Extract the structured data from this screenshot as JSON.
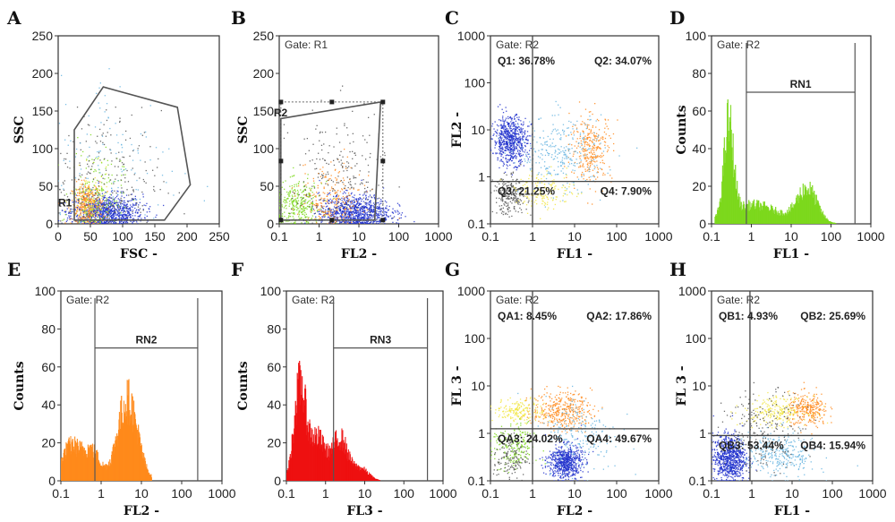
{
  "colors": {
    "blue": "#2233cc",
    "orange": "#ff8a1c",
    "green": "#7cd81c",
    "red": "#ee1111",
    "yellow": "#f2e642",
    "gray": "#555555",
    "cyan": "#66b4e0",
    "gate": "#555555"
  },
  "panels": [
    {
      "letter": "A",
      "type": "scatter",
      "gate": "",
      "xscale": "linear",
      "yscale": "linear",
      "xlim": [
        0,
        250
      ],
      "ylim": [
        0,
        250
      ],
      "xticks": [
        "0",
        "50",
        "100",
        "150",
        "200",
        "250"
      ],
      "yticks": [
        "0",
        "50",
        "100",
        "150",
        "200",
        "250"
      ],
      "xlabel": "FSC -",
      "ylabel": "SSC",
      "gate_name": "R1",
      "gate_polygon": [
        [
          25,
          5
        ],
        [
          25,
          125
        ],
        [
          70,
          182
        ],
        [
          185,
          155
        ],
        [
          205,
          52
        ],
        [
          165,
          5
        ]
      ],
      "populations": [
        {
          "color": "blue",
          "cx": 75,
          "cy": 15,
          "sx": 28,
          "sy": 12,
          "n": 900
        },
        {
          "color": "orange",
          "cx": 45,
          "cy": 25,
          "sx": 12,
          "sy": 15,
          "n": 320
        },
        {
          "color": "yellow",
          "cx": 50,
          "cy": 30,
          "sx": 15,
          "sy": 20,
          "n": 140
        },
        {
          "color": "green",
          "cx": 60,
          "cy": 40,
          "sx": 20,
          "sy": 30,
          "n": 160
        },
        {
          "color": "gray",
          "cx": 70,
          "cy": 60,
          "sx": 45,
          "sy": 45,
          "n": 220
        },
        {
          "color": "cyan",
          "cx": 90,
          "cy": 80,
          "sx": 50,
          "sy": 60,
          "n": 120
        }
      ]
    },
    {
      "letter": "B",
      "type": "scatter",
      "gate": "Gate: R1",
      "xscale": "log",
      "yscale": "linear",
      "xlim": [
        0.1,
        1000
      ],
      "ylim": [
        0,
        250
      ],
      "xticks": [
        "0.1",
        "1",
        "10",
        "100",
        "1000"
      ],
      "yticks": [
        "0",
        "50",
        "100",
        "150",
        "200",
        "250"
      ],
      "xlabel": "FL2 -",
      "ylabel": "SSC",
      "gate_name": "R2",
      "gate_polygon": [
        [
          0.11,
          140
        ],
        [
          35,
          162
        ],
        [
          25,
          5
        ],
        [
          0.11,
          5
        ]
      ],
      "dotted_box": [
        [
          0.11,
          5
        ],
        [
          40,
          162
        ]
      ],
      "populations": [
        {
          "color": "blue",
          "cx": 8,
          "cy": 15,
          "sx": 0.45,
          "sy": 12,
          "n": 900
        },
        {
          "color": "green",
          "cx": 0.3,
          "cy": 25,
          "sx": 0.3,
          "sy": 15,
          "n": 320
        },
        {
          "color": "orange",
          "cx": 2,
          "cy": 30,
          "sx": 0.4,
          "sy": 25,
          "n": 240
        },
        {
          "color": "gray",
          "cx": 3,
          "cy": 60,
          "sx": 0.6,
          "sy": 45,
          "n": 220
        }
      ]
    },
    {
      "letter": "C",
      "type": "scatter",
      "gate": "Gate: R2",
      "xscale": "log",
      "yscale": "log",
      "xlim": [
        0.1,
        1000
      ],
      "ylim": [
        0.1,
        1000
      ],
      "xticks": [
        "0.1",
        "1",
        "10",
        "100",
        "1000"
      ],
      "yticks": [
        "0.1",
        "1",
        "10",
        "100",
        "1000"
      ],
      "xlabel": "FL1 -",
      "ylabel": "FL2 -",
      "quad": {
        "x": 1,
        "y": 0.8
      },
      "quadrants": {
        "ul": "Q1: 36.78%",
        "ur": "Q2: 34.07%",
        "ll": "Q3: 21.25%",
        "lr": "Q4: 7.90%"
      },
      "populations": [
        {
          "color": "blue",
          "cx": 0.3,
          "cy": 6,
          "sx": 0.2,
          "sy": 0.25,
          "n": 650
        },
        {
          "color": "orange",
          "cx": 25,
          "cy": 4,
          "sx": 0.25,
          "sy": 0.35,
          "n": 300
        },
        {
          "color": "cyan",
          "cx": 5,
          "cy": 3,
          "sx": 0.5,
          "sy": 0.4,
          "n": 300
        },
        {
          "color": "gray",
          "cx": 0.3,
          "cy": 0.4,
          "sx": 0.2,
          "sy": 0.2,
          "n": 250
        },
        {
          "color": "yellow",
          "cx": 2,
          "cy": 0.5,
          "sx": 0.35,
          "sy": 0.2,
          "n": 150
        }
      ]
    },
    {
      "letter": "D",
      "type": "histogram",
      "gate": "Gate: R2",
      "xscale": "log",
      "yscale": "linear",
      "xlim": [
        0.1,
        1000
      ],
      "ylim": [
        0,
        100
      ],
      "xticks": [
        "0.1",
        "1",
        "10",
        "100",
        "1000"
      ],
      "yticks": [
        "0",
        "20",
        "40",
        "60",
        "80",
        "100"
      ],
      "xlabel": "FL1 -",
      "ylabel": "Counts",
      "fill": "green",
      "marker": {
        "label": "RN1",
        "x1": 0.75,
        "x2": 400,
        "y": 70
      },
      "components": [
        {
          "amp": 48,
          "mu": 0.27,
          "sigma": 0.12
        },
        {
          "amp": 10,
          "mu": 1.2,
          "sigma": 0.6
        },
        {
          "amp": 18,
          "mu": 25,
          "sigma": 0.25
        }
      ],
      "range": [
        0.12,
        200
      ]
    },
    {
      "letter": "E",
      "type": "histogram",
      "gate": "Gate: R2",
      "xscale": "log",
      "yscale": "linear",
      "xlim": [
        0.1,
        1000
      ],
      "ylim": [
        0,
        100
      ],
      "xticks": [
        "0.1",
        "1",
        "10",
        "100",
        "1000"
      ],
      "yticks": [
        "0",
        "20",
        "40",
        "60",
        "80",
        "100"
      ],
      "xlabel": "FL2 -",
      "ylabel": "Counts",
      "fill": "orange",
      "marker": {
        "label": "RN2",
        "x1": 0.7,
        "x2": 250,
        "y": 70
      },
      "components": [
        {
          "amp": 18,
          "mu": 0.18,
          "sigma": 0.25
        },
        {
          "amp": 14,
          "mu": 0.6,
          "sigma": 0.2
        },
        {
          "amp": 42,
          "mu": 4.5,
          "sigma": 0.25
        }
      ],
      "range": [
        0.1,
        18
      ]
    },
    {
      "letter": "F",
      "type": "histogram",
      "gate": "Gate: R2",
      "xscale": "log",
      "yscale": "linear",
      "xlim": [
        0.1,
        1000
      ],
      "ylim": [
        0,
        100
      ],
      "xticks": [
        "0.1",
        "1",
        "10",
        "100",
        "1000"
      ],
      "yticks": [
        "0",
        "20",
        "40",
        "60",
        "80",
        "100"
      ],
      "xlabel": "FL3 -",
      "ylabel": "Counts",
      "fill": "red",
      "marker": {
        "label": "RN3",
        "x1": 1.6,
        "x2": 400,
        "y": 70
      },
      "components": [
        {
          "amp": 48,
          "mu": 0.22,
          "sigma": 0.15
        },
        {
          "amp": 22,
          "mu": 0.6,
          "sigma": 0.2
        },
        {
          "amp": 22,
          "mu": 2.3,
          "sigma": 0.2
        },
        {
          "amp": 6,
          "mu": 8,
          "sigma": 0.2
        }
      ],
      "range": [
        0.1,
        30
      ]
    },
    {
      "letter": "G",
      "type": "scatter",
      "gate": "Gate: R2",
      "xscale": "log",
      "yscale": "log",
      "xlim": [
        0.1,
        1000
      ],
      "ylim": [
        0.1,
        1000
      ],
      "xticks": [
        "0.1",
        "1",
        "10",
        "100",
        "1000"
      ],
      "yticks": [
        "0.1",
        "1",
        "10",
        "100",
        "1000"
      ],
      "xlabel": "FL2 -",
      "ylabel": "FL 3 -",
      "quad": {
        "x": 1,
        "y": 1.25
      },
      "quadrants": {
        "ul": "QA1: 8.45%",
        "ur": "QA2: 17.86%",
        "ll": "QA3: 24.02%",
        "lr": "QA4: 49.67%"
      },
      "populations": [
        {
          "color": "blue",
          "cx": 6,
          "cy": 0.25,
          "sx": 0.2,
          "sy": 0.18,
          "n": 650
        },
        {
          "color": "orange",
          "cx": 5,
          "cy": 3,
          "sx": 0.35,
          "sy": 0.2,
          "n": 380
        },
        {
          "color": "yellow",
          "cx": 0.5,
          "cy": 3,
          "sx": 0.3,
          "sy": 0.12,
          "n": 180
        },
        {
          "color": "green",
          "cx": 0.35,
          "cy": 0.5,
          "sx": 0.25,
          "sy": 0.25,
          "n": 200
        },
        {
          "color": "gray",
          "cx": 0.3,
          "cy": 0.3,
          "sx": 0.2,
          "sy": 0.25,
          "n": 150
        },
        {
          "color": "cyan",
          "cx": 15,
          "cy": 1,
          "sx": 0.45,
          "sy": 0.4,
          "n": 200
        }
      ]
    },
    {
      "letter": "H",
      "type": "scatter",
      "gate": "Gate: R2",
      "xscale": "log",
      "yscale": "log",
      "xlim": [
        0.1,
        1000
      ],
      "ylim": [
        0.1,
        1000
      ],
      "xticks": [
        "0.1",
        "1",
        "10",
        "100",
        "1000"
      ],
      "yticks": [
        "0.1",
        "1",
        "10",
        "100",
        "1000"
      ],
      "xlabel": "FL1 -",
      "ylabel": "FL 3 -",
      "quad": {
        "x": 0.9,
        "y": 0.9
      },
      "quadrants": {
        "ul": "QB1: 4.93%",
        "ur": "QB2: 25.69%",
        "ll": "QB3: 53.44%",
        "lr": "QB4: 15.94%"
      },
      "populations": [
        {
          "color": "blue",
          "cx": 0.28,
          "cy": 0.3,
          "sx": 0.2,
          "sy": 0.25,
          "n": 800
        },
        {
          "color": "orange",
          "cx": 25,
          "cy": 3,
          "sx": 0.25,
          "sy": 0.18,
          "n": 280
        },
        {
          "color": "yellow",
          "cx": 4,
          "cy": 3,
          "sx": 0.4,
          "sy": 0.15,
          "n": 220
        },
        {
          "color": "cyan",
          "cx": 5,
          "cy": 0.35,
          "sx": 0.45,
          "sy": 0.25,
          "n": 300
        },
        {
          "color": "gray",
          "cx": 2,
          "cy": 1.2,
          "sx": 0.5,
          "sy": 0.4,
          "n": 200
        }
      ]
    }
  ]
}
